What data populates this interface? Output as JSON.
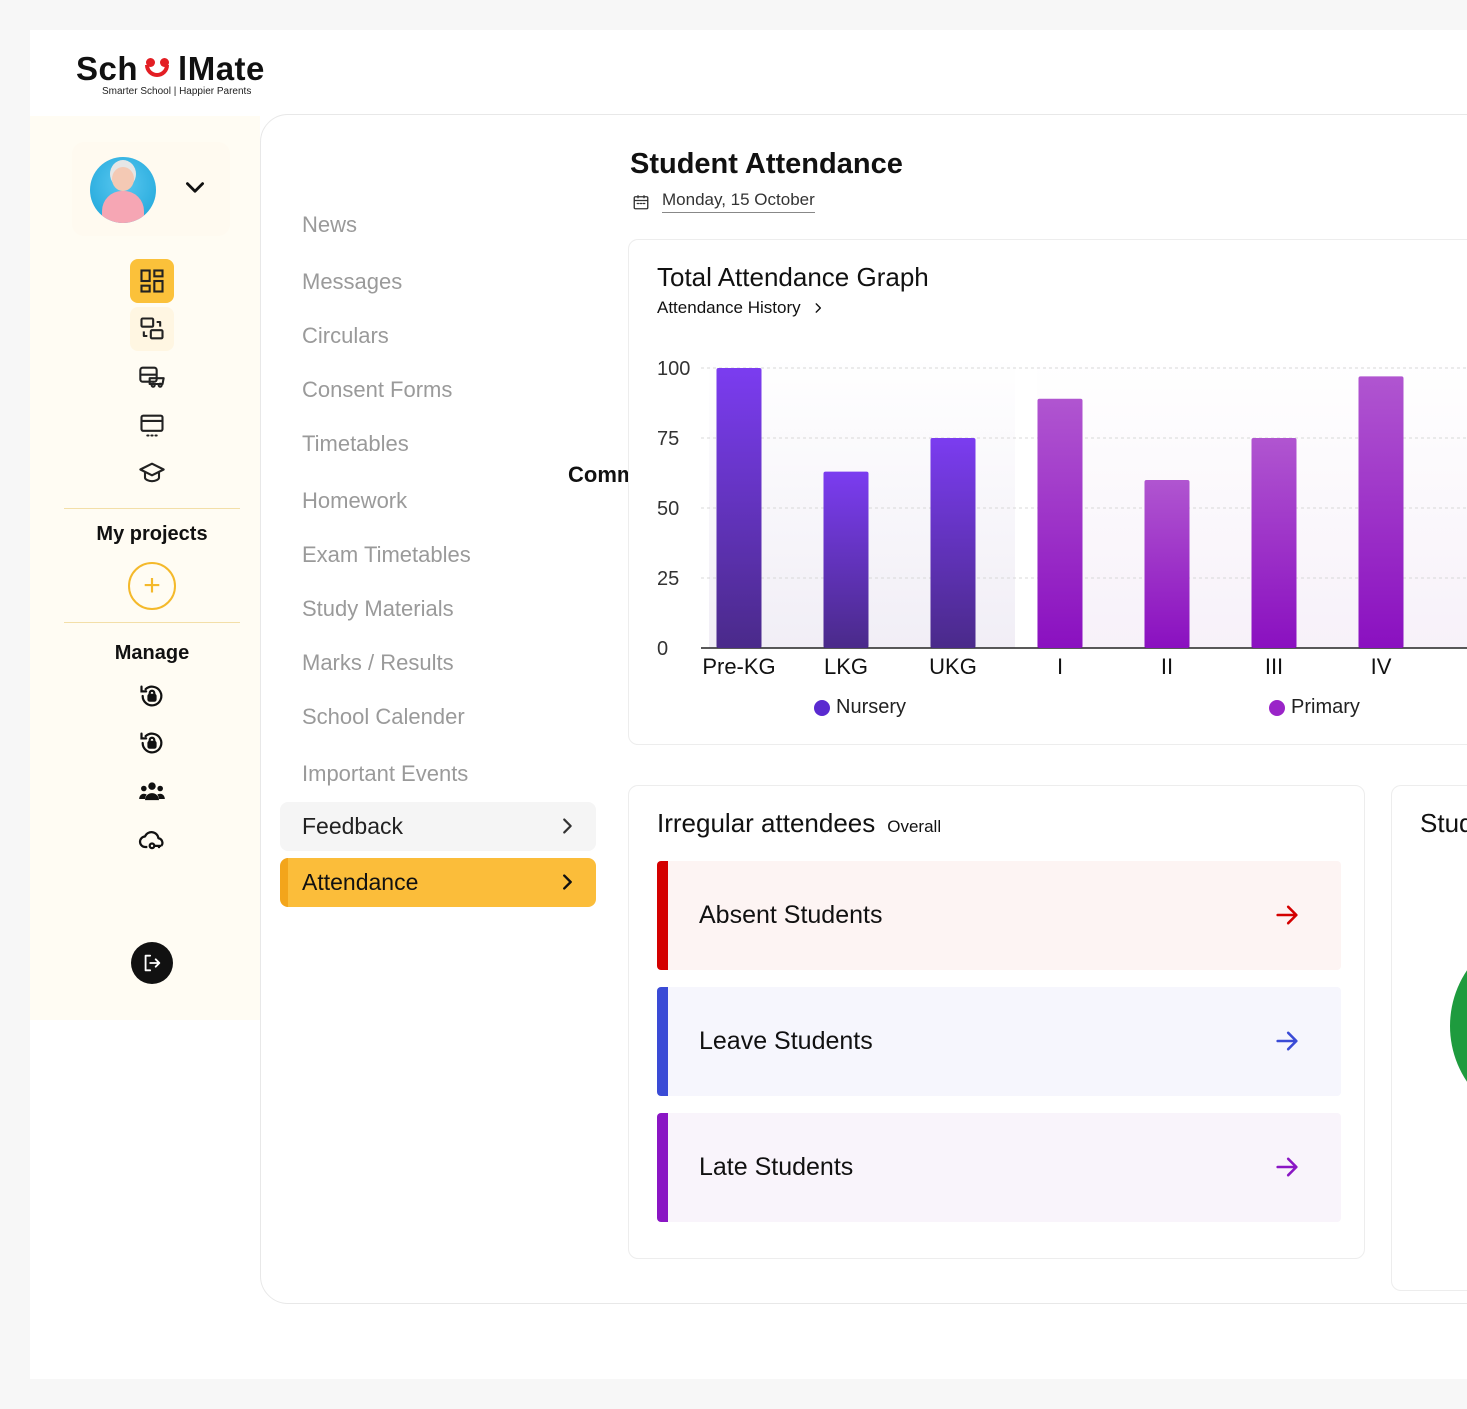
{
  "brand": {
    "name_left": "Sch",
    "name_right": "lMate",
    "tagline": "Smarter School | Happier Parents"
  },
  "rail": {
    "my_projects": "My projects",
    "manage": "Manage",
    "add_symbol": "+"
  },
  "menu": {
    "items": [
      "News",
      "Messages",
      "Circulars",
      "Consent Forms",
      "Timetables",
      "Homework",
      "Exam Timetables",
      "Study Materials",
      "Marks / Results",
      "School Calender",
      "Important Events"
    ],
    "feedback": "Feedback",
    "attendance": "Attendance",
    "comm_fragment": "Comm"
  },
  "page": {
    "title": "Student Attendance",
    "date": "Monday, 15 October"
  },
  "graph": {
    "title": "Total Attendance Graph",
    "link": "Attendance History"
  },
  "chart_data": {
    "type": "bar",
    "categories": [
      "Pre-KG",
      "LKG",
      "UKG",
      "I",
      "II",
      "III",
      "IV"
    ],
    "series": [
      {
        "name": "Nursery",
        "values": [
          100,
          63,
          75,
          null,
          null,
          null,
          null
        ],
        "color": "#6a2cd6"
      },
      {
        "name": "Primary",
        "values": [
          null,
          null,
          null,
          89,
          60,
          75,
          97
        ],
        "color": "#9a24c8"
      }
    ],
    "yticks": [
      0,
      25,
      50,
      75,
      100
    ],
    "ylim": [
      0,
      100
    ],
    "grid": true,
    "legend": "bottom"
  },
  "irregular": {
    "title": "Irregular attendees",
    "qualifier": "Overall",
    "rows": [
      {
        "label": "Absent Students",
        "accent": "#d40000",
        "bg": "#fdf4f3"
      },
      {
        "label": "Leave Students",
        "accent": "#3a4bd6",
        "bg": "#f6f6fd"
      },
      {
        "label": "Late Students",
        "accent": "#8a16c4",
        "bg": "#f9f4fb"
      }
    ]
  },
  "stud_card": {
    "title_fragment": "Stud"
  }
}
